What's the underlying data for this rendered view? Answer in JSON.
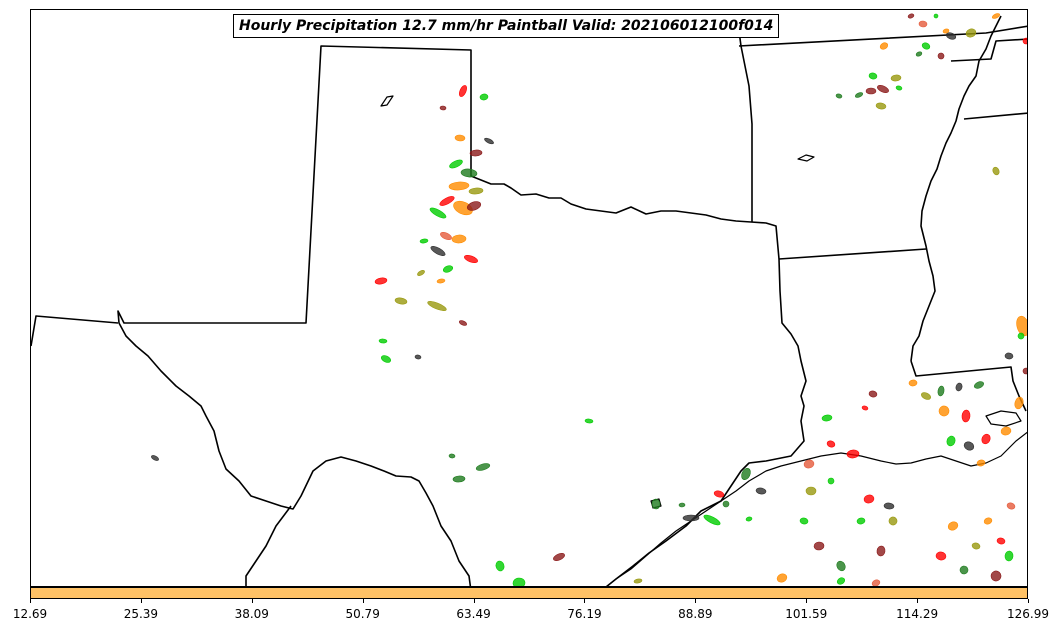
{
  "title": "Hourly Precipitation 12.7 mm/hr Paintball Valid: 202106012100f014",
  "colorbar": {
    "color": "#ffc266",
    "ticks": [
      "12.69",
      "25.39",
      "38.09",
      "50.79",
      "63.49",
      "76.19",
      "88.89",
      "101.59",
      "114.29",
      "126.99"
    ]
  },
  "member_colors": [
    "#ff0000",
    "#00cc00",
    "#ff8c00",
    "#2e2e2e",
    "#8b1a1a",
    "#1e7b1e",
    "#99990f",
    "#e55b3c"
  ]
}
